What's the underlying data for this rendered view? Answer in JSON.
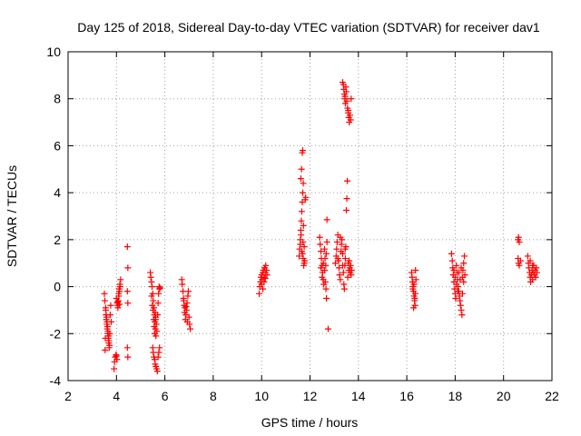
{
  "chart_data": {
    "type": "scatter",
    "title": "Day 125 of 2018, Sidereal Day-to-day VTEC variation (SDTVAR) for receiver dav1",
    "xlabel": "GPS time / hours",
    "ylabel": "SDTVAR / TECUs",
    "xlim": [
      2,
      22
    ],
    "ylim": [
      -4,
      10
    ],
    "xticks": [
      "2",
      "4",
      "6",
      "8",
      "10",
      "12",
      "14",
      "16",
      "18",
      "20",
      "22"
    ],
    "yticks": [
      "-4",
      "-2",
      "0",
      "2",
      "4",
      "6",
      "8",
      "10"
    ],
    "grid": true,
    "marker": "+",
    "series": [
      {
        "name": "SDTVAR",
        "color": "#ff0000",
        "points": [
          [
            3.5,
            -0.3
          ],
          [
            3.52,
            -0.6
          ],
          [
            3.55,
            -0.9
          ],
          [
            3.57,
            -1.2
          ],
          [
            3.58,
            -1.4
          ],
          [
            3.6,
            -1.6
          ],
          [
            3.62,
            -1.8
          ],
          [
            3.64,
            -2.0
          ],
          [
            3.66,
            -2.2
          ],
          [
            3.68,
            -2.4
          ],
          [
            3.7,
            -2.6
          ],
          [
            3.53,
            -2.7
          ],
          [
            3.56,
            -1.0
          ],
          [
            3.59,
            -1.3
          ],
          [
            3.61,
            -1.5
          ],
          [
            3.63,
            -1.7
          ],
          [
            3.65,
            -1.9
          ],
          [
            3.67,
            -2.1
          ],
          [
            3.69,
            -2.3
          ],
          [
            3.71,
            -2.5
          ],
          [
            3.72,
            -2.0
          ],
          [
            3.74,
            -1.2
          ],
          [
            3.76,
            -0.8
          ],
          [
            3.54,
            -2.2
          ],
          [
            3.78,
            -1.5
          ],
          [
            3.9,
            -3.5
          ],
          [
            3.92,
            -3.2
          ],
          [
            3.95,
            -3.0
          ],
          [
            3.98,
            -2.9
          ],
          [
            4.0,
            -2.95
          ],
          [
            4.02,
            -3.1
          ],
          [
            4.05,
            -0.8
          ],
          [
            4.08,
            -0.6
          ],
          [
            4.1,
            -0.4
          ],
          [
            4.12,
            -0.2
          ],
          [
            4.15,
            0.0
          ],
          [
            4.17,
            0.3
          ],
          [
            4.0,
            -0.5
          ],
          [
            4.03,
            -0.7
          ],
          [
            4.06,
            -0.9
          ],
          [
            4.09,
            -0.3
          ],
          [
            4.11,
            -0.1
          ],
          [
            4.14,
            0.1
          ],
          [
            4.05,
            -0.65
          ],
          [
            4.12,
            -0.75
          ],
          [
            4.45,
            1.7
          ],
          [
            4.47,
            0.8
          ],
          [
            4.45,
            -0.2
          ],
          [
            4.47,
            -0.7
          ],
          [
            4.45,
            -2.6
          ],
          [
            4.47,
            -3.0
          ],
          [
            5.4,
            0.6
          ],
          [
            5.42,
            0.4
          ],
          [
            5.45,
            0.2
          ],
          [
            5.47,
            0.0
          ],
          [
            5.5,
            -0.3
          ],
          [
            5.52,
            -0.6
          ],
          [
            5.55,
            -0.9
          ],
          [
            5.57,
            -1.2
          ],
          [
            5.59,
            -1.5
          ],
          [
            5.61,
            -1.8
          ],
          [
            5.63,
            -2.1
          ],
          [
            5.45,
            -0.4
          ],
          [
            5.48,
            -0.8
          ],
          [
            5.51,
            -1.0
          ],
          [
            5.54,
            -1.4
          ],
          [
            5.56,
            -1.7
          ],
          [
            5.58,
            -2.0
          ],
          [
            5.6,
            -1.1
          ],
          [
            5.62,
            -1.3
          ],
          [
            5.65,
            -1.6
          ],
          [
            5.67,
            -1.9
          ],
          [
            5.7,
            -1.2
          ],
          [
            5.72,
            -0.7
          ],
          [
            5.74,
            -0.3
          ],
          [
            5.76,
            0.0
          ],
          [
            5.78,
            -0.1
          ],
          [
            5.8,
            -0.05
          ],
          [
            5.5,
            -2.6
          ],
          [
            5.52,
            -2.8
          ],
          [
            5.55,
            -3.0
          ],
          [
            5.58,
            -3.1
          ],
          [
            5.6,
            -3.3
          ],
          [
            5.63,
            -3.4
          ],
          [
            5.66,
            -3.5
          ],
          [
            5.69,
            -3.6
          ],
          [
            5.72,
            -3.0
          ],
          [
            5.75,
            -2.8
          ],
          [
            5.78,
            -2.6
          ],
          [
            5.62,
            -1.4
          ],
          [
            6.7,
            0.3
          ],
          [
            6.72,
            0.1
          ],
          [
            6.75,
            -0.2
          ],
          [
            6.77,
            -0.5
          ],
          [
            6.8,
            -0.8
          ],
          [
            6.82,
            -1.1
          ],
          [
            6.85,
            -1.4
          ],
          [
            6.87,
            -1.2
          ],
          [
            6.9,
            -1.0
          ],
          [
            6.92,
            -0.7
          ],
          [
            6.95,
            -0.4
          ],
          [
            6.97,
            -0.2
          ],
          [
            7.0,
            -1.3
          ],
          [
            7.02,
            -1.6
          ],
          [
            7.05,
            -1.8
          ],
          [
            6.78,
            -0.6
          ],
          [
            6.83,
            -0.9
          ],
          [
            6.88,
            -0.85
          ],
          [
            6.93,
            -1.5
          ],
          [
            9.9,
            -0.3
          ],
          [
            9.92,
            0.0
          ],
          [
            9.95,
            0.2
          ],
          [
            9.97,
            0.4
          ],
          [
            10.0,
            0.5
          ],
          [
            10.02,
            0.3
          ],
          [
            10.05,
            0.6
          ],
          [
            10.07,
            0.7
          ],
          [
            10.1,
            0.4
          ],
          [
            10.12,
            0.8
          ],
          [
            10.15,
            0.6
          ],
          [
            10.17,
            0.9
          ],
          [
            10.2,
            0.7
          ],
          [
            10.22,
            0.5
          ],
          [
            10.0,
            0.1
          ],
          [
            10.05,
            -0.1
          ],
          [
            10.1,
            0.2
          ],
          [
            10.15,
            0.35
          ],
          [
            11.55,
            1.3
          ],
          [
            11.57,
            1.6
          ],
          [
            11.6,
            2.0
          ],
          [
            11.62,
            2.4
          ],
          [
            11.64,
            2.8
          ],
          [
            11.66,
            3.2
          ],
          [
            11.68,
            3.6
          ],
          [
            11.7,
            4.0
          ],
          [
            11.72,
            4.4
          ],
          [
            11.62,
            4.6
          ],
          [
            11.65,
            5.0
          ],
          [
            11.68,
            5.7
          ],
          [
            11.7,
            5.8
          ],
          [
            11.72,
            1.2
          ],
          [
            11.74,
            0.9
          ],
          [
            11.76,
            1.0
          ],
          [
            11.78,
            1.1
          ],
          [
            11.8,
            3.7
          ],
          [
            11.82,
            3.8
          ],
          [
            11.6,
            1.8
          ],
          [
            11.63,
            2.2
          ],
          [
            11.66,
            1.5
          ],
          [
            11.69,
            1.4
          ],
          [
            11.71,
            1.9
          ],
          [
            11.73,
            2.6
          ],
          [
            11.76,
            1.7
          ],
          [
            12.4,
            2.1
          ],
          [
            12.42,
            1.8
          ],
          [
            12.45,
            1.5
          ],
          [
            12.47,
            1.2
          ],
          [
            12.5,
            0.9
          ],
          [
            12.52,
            0.6
          ],
          [
            12.55,
            0.3
          ],
          [
            12.57,
            0.1
          ],
          [
            12.6,
            1.6
          ],
          [
            12.62,
            1.2
          ],
          [
            12.65,
            0.9
          ],
          [
            12.67,
            1.4
          ],
          [
            12.7,
            1.9
          ],
          [
            12.45,
            0.8
          ],
          [
            12.5,
            0.4
          ],
          [
            12.55,
            1.0
          ],
          [
            12.6,
            0.7
          ],
          [
            12.63,
            0.2
          ],
          [
            12.66,
            -0.1
          ],
          [
            12.68,
            -0.5
          ],
          [
            12.7,
            2.85
          ],
          [
            12.75,
            -1.8
          ],
          [
            13.05,
            1.0
          ],
          [
            13.08,
            1.3
          ],
          [
            13.1,
            1.6
          ],
          [
            13.12,
            1.9
          ],
          [
            13.15,
            2.2
          ],
          [
            13.18,
            1.1
          ],
          [
            13.2,
            0.8
          ],
          [
            13.22,
            0.5
          ],
          [
            13.25,
            0.3
          ],
          [
            13.28,
            1.5
          ],
          [
            13.3,
            1.8
          ],
          [
            13.32,
            2.0
          ],
          [
            13.35,
            1.4
          ],
          [
            13.38,
            0.6
          ],
          [
            13.4,
            0.1
          ],
          [
            13.42,
            -0.1
          ],
          [
            13.44,
            0.9
          ],
          [
            13.46,
            1.2
          ],
          [
            13.48,
            1.7
          ],
          [
            13.5,
            3.25
          ],
          [
            13.52,
            3.75
          ],
          [
            13.54,
            4.5
          ],
          [
            13.56,
            0.4
          ],
          [
            13.58,
            1.0
          ],
          [
            13.6,
            0.7
          ],
          [
            13.62,
            1.1
          ],
          [
            13.64,
            0.8
          ],
          [
            13.66,
            0.6
          ],
          [
            13.68,
            0.9
          ],
          [
            13.7,
            0.5
          ],
          [
            13.72,
            0.7
          ],
          [
            13.15,
            1.2
          ],
          [
            13.25,
            2.1
          ],
          [
            13.35,
            0.9
          ],
          [
            13.45,
            1.6
          ],
          [
            13.35,
            8.7
          ],
          [
            13.38,
            8.6
          ],
          [
            13.4,
            8.4
          ],
          [
            13.42,
            8.2
          ],
          [
            13.44,
            8.0
          ],
          [
            13.46,
            7.8
          ],
          [
            13.48,
            8.5
          ],
          [
            13.5,
            8.3
          ],
          [
            13.52,
            7.9
          ],
          [
            13.55,
            7.6
          ],
          [
            13.58,
            7.4
          ],
          [
            13.6,
            7.2
          ],
          [
            13.62,
            7.0
          ],
          [
            13.65,
            7.3
          ],
          [
            13.68,
            7.1
          ],
          [
            13.7,
            8.0
          ],
          [
            13.45,
            8.1
          ],
          [
            13.58,
            7.5
          ],
          [
            16.2,
            0.6
          ],
          [
            16.22,
            0.4
          ],
          [
            16.24,
            0.2
          ],
          [
            16.26,
            0.0
          ],
          [
            16.28,
            -0.2
          ],
          [
            16.3,
            -0.4
          ],
          [
            16.32,
            -0.6
          ],
          [
            16.34,
            -0.8
          ],
          [
            16.36,
            0.7
          ],
          [
            16.38,
            0.3
          ],
          [
            16.25,
            -0.1
          ],
          [
            16.3,
            0.1
          ],
          [
            16.35,
            -0.3
          ],
          [
            16.33,
            -0.5
          ],
          [
            16.28,
            -0.9
          ],
          [
            17.85,
            1.4
          ],
          [
            17.88,
            1.1
          ],
          [
            17.9,
            0.8
          ],
          [
            17.92,
            0.5
          ],
          [
            17.95,
            0.2
          ],
          [
            17.98,
            -0.1
          ],
          [
            18.0,
            -0.3
          ],
          [
            18.02,
            -0.5
          ],
          [
            18.05,
            0.9
          ],
          [
            18.08,
            0.6
          ],
          [
            18.1,
            0.3
          ],
          [
            18.12,
            0.0
          ],
          [
            18.15,
            -0.2
          ],
          [
            18.18,
            -0.4
          ],
          [
            18.2,
            -0.6
          ],
          [
            18.22,
            -0.8
          ],
          [
            18.25,
            -1.0
          ],
          [
            18.28,
            -1.2
          ],
          [
            18.3,
            0.4
          ],
          [
            18.32,
            0.7
          ],
          [
            18.35,
            1.0
          ],
          [
            18.38,
            1.3
          ],
          [
            18.4,
            0.5
          ],
          [
            17.95,
            0.7
          ],
          [
            18.0,
            0.4
          ],
          [
            18.05,
            0.1
          ],
          [
            18.1,
            -0.2
          ],
          [
            18.15,
            0.6
          ],
          [
            18.2,
            0.3
          ],
          [
            18.25,
            0.8
          ],
          [
            18.3,
            -0.3
          ],
          [
            18.35,
            0.2
          ],
          [
            20.6,
            2.0
          ],
          [
            20.62,
            2.1
          ],
          [
            20.65,
            1.9
          ],
          [
            20.6,
            1.2
          ],
          [
            20.62,
            1.0
          ],
          [
            20.65,
            0.9
          ],
          [
            20.7,
            1.1
          ],
          [
            21.0,
            1.3
          ],
          [
            21.03,
            1.0
          ],
          [
            21.05,
            0.8
          ],
          [
            21.08,
            0.6
          ],
          [
            21.1,
            0.4
          ],
          [
            21.12,
            0.2
          ],
          [
            21.15,
            0.5
          ],
          [
            21.18,
            0.7
          ],
          [
            21.2,
            0.3
          ],
          [
            21.22,
            0.6
          ],
          [
            21.25,
            0.9
          ],
          [
            21.28,
            0.5
          ],
          [
            21.3,
            0.7
          ],
          [
            21.33,
            0.4
          ],
          [
            21.35,
            0.8
          ],
          [
            21.38,
            0.6
          ],
          [
            21.1,
            1.1
          ],
          [
            21.2,
            0.9
          ]
        ]
      }
    ]
  }
}
